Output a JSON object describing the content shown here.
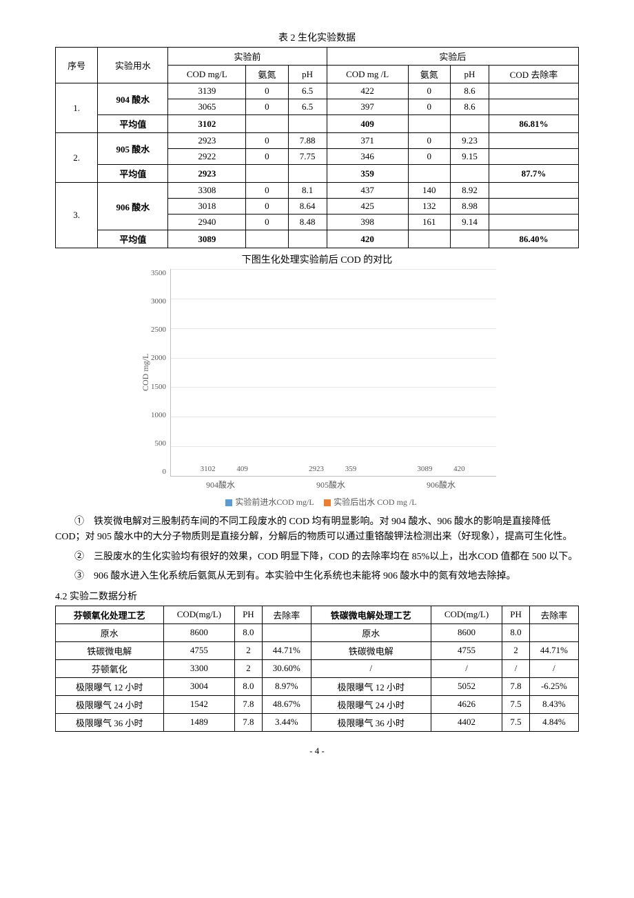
{
  "table1": {
    "title": "表 2 生化实验数据",
    "h_seq": "序号",
    "h_water": "实验用水",
    "h_before": "实验前",
    "h_after": "实验后",
    "h_cod1": "COD mg/L",
    "h_nh1": "氨氮",
    "h_ph1": "pH",
    "h_cod2": "COD mg /L",
    "h_nh2": "氨氮",
    "h_ph2": "pH",
    "h_rem": "COD 去除率",
    "avg_label": "平均值",
    "g1": {
      "seq": "1.",
      "water": "904 酸水",
      "r1": {
        "c1": "3139",
        "n1": "0",
        "p1": "6.5",
        "c2": "422",
        "n2": "0",
        "p2": "8.6"
      },
      "r2": {
        "c1": "3065",
        "n1": "0",
        "p1": "6.5",
        "c2": "397",
        "n2": "0",
        "p2": "8.6"
      },
      "avg_c1": "3102",
      "avg_c2": "409",
      "rem": "86.81%"
    },
    "g2": {
      "seq": "2.",
      "water": "905 酸水",
      "r1": {
        "c1": "2923",
        "n1": "0",
        "p1": "7.88",
        "c2": "371",
        "n2": "0",
        "p2": "9.23"
      },
      "r2": {
        "c1": "2922",
        "n1": "0",
        "p1": "7.75",
        "c2": "346",
        "n2": "0",
        "p2": "9.15"
      },
      "avg_c1": "2923",
      "avg_c2": "359",
      "rem": "87.7%"
    },
    "g3": {
      "seq": "3.",
      "water": "906 酸水",
      "r1": {
        "c1": "3308",
        "n1": "0",
        "p1": "8.1",
        "c2": "437",
        "n2": "140",
        "p2": "8.92"
      },
      "r2": {
        "c1": "3018",
        "n1": "0",
        "p1": "8.64",
        "c2": "425",
        "n2": "132",
        "p2": "8.98"
      },
      "r3": {
        "c1": "2940",
        "n1": "0",
        "p1": "8.48",
        "c2": "398",
        "n2": "161",
        "p2": "9.14"
      },
      "avg_c1": "3089",
      "avg_c2": "420",
      "rem": "86.40%"
    }
  },
  "chart": {
    "caption": "下图生化处理实验前后 COD 的对比",
    "y_label": "COD mg/L",
    "y_max": 3500,
    "y_ticks": [
      "3500",
      "3000",
      "2500",
      "2000",
      "1500",
      "1000",
      "500",
      "0"
    ],
    "categories": [
      "904酸水",
      "905酸水",
      "906酸水"
    ],
    "series_a_color": "#5b9bd5",
    "series_b_color": "#ed7d31",
    "grid_color": "#e6e6e6",
    "axis_color": "#bfbfbf",
    "text_color": "#595959",
    "v": {
      "a1": "3102",
      "b1": "409",
      "a2": "2923",
      "b2": "359",
      "a3": "3089",
      "b3": "420"
    },
    "legend_a": "实验前进水COD mg/L",
    "legend_b": "实验后出水 COD mg /L"
  },
  "paras": {
    "p1": "①　铁炭微电解对三股制药车间的不同工段废水的 COD 均有明显影响。对 904 酸水、906 酸水的影响是直接降低 COD；对 905 酸水中的大分子物质则是直接分解，分解后的物质可以通过重铬酸钾法检测出来（好现象），提高可生化性。",
    "p2": "②　三股废水的生化实验均有很好的效果，COD 明显下降，COD 的去除率均在 85%以上，出水COD 值都在 500 以下。",
    "p3": "③　906 酸水进入生化系统后氨氮从无到有。本实验中生化系统也未能将 906 酸水中的氮有效地去除掉。"
  },
  "section42": "4.2 实验二数据分析",
  "table2": {
    "h": {
      "proc_a": "芬顿氧化处理工艺",
      "cod_a": "COD(mg/L)",
      "ph_a": "PH",
      "rem_a": "去除率",
      "proc_b": "铁碳微电解处理工艺",
      "cod_b": "COD(mg/L)",
      "ph_b": "PH",
      "rem_b": "去除率"
    },
    "r1": {
      "a": "原水",
      "ca": "8600",
      "pa": "8.0",
      "ra": "",
      "b": "原水",
      "cb": "8600",
      "pb": "8.0",
      "rb": ""
    },
    "r2": {
      "a": "铁碳微电解",
      "ca": "4755",
      "pa": "2",
      "ra": "44.71%",
      "b": "铁碳微电解",
      "cb": "4755",
      "pb": "2",
      "rb": "44.71%"
    },
    "r3": {
      "a": "芬顿氧化",
      "ca": "3300",
      "pa": "2",
      "ra": "30.60%",
      "b": "/",
      "cb": "/",
      "pb": "/",
      "rb": "/"
    },
    "r4": {
      "a": "极限曝气 12 小时",
      "ca": "3004",
      "pa": "8.0",
      "ra": "8.97%",
      "b": "极限曝气 12 小时",
      "cb": "5052",
      "pb": "7.8",
      "rb": "-6.25%"
    },
    "r5": {
      "a": "极限曝气 24 小时",
      "ca": "1542",
      "pa": "7.8",
      "ra": "48.67%",
      "b": "极限曝气 24 小时",
      "cb": "4626",
      "pb": "7.5",
      "rb": "8.43%"
    },
    "r6": {
      "a": "极限曝气 36 小时",
      "ca": "1489",
      "pa": "7.8",
      "ra": "3.44%",
      "b": "极限曝气 36 小时",
      "cb": "4402",
      "pb": "7.5",
      "rb": "4.84%"
    }
  },
  "page_num": "- 4 -"
}
